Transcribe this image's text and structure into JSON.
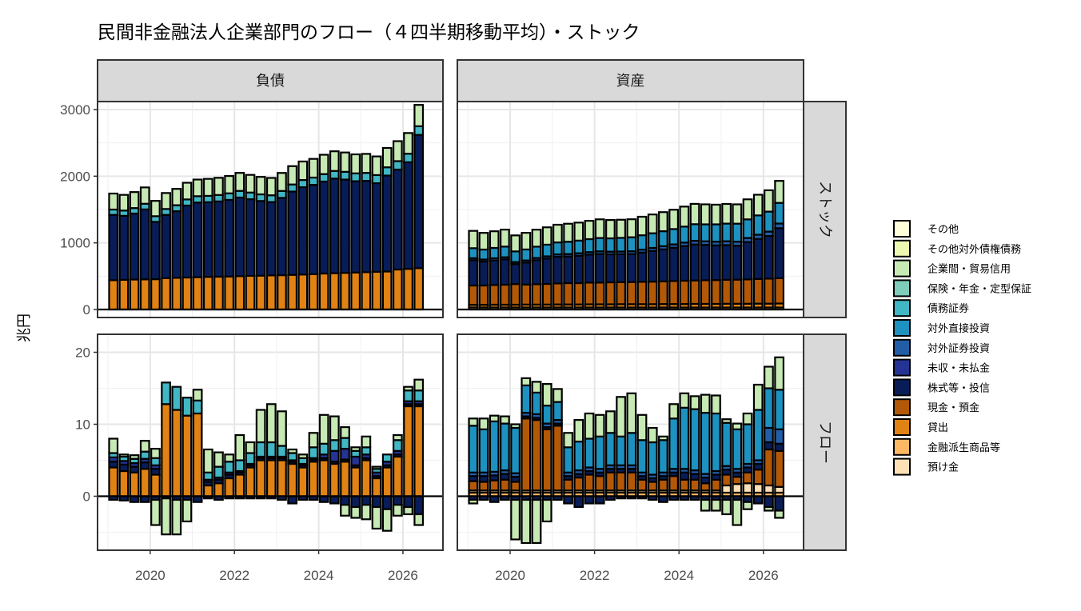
{
  "title": "民間非金融法人企業部門のフロー（４四半期移動平均）・ストック",
  "chart_data": {
    "type": "bar",
    "stacked": true,
    "facets": {
      "columns": [
        "負債",
        "資産"
      ],
      "rows": [
        "ストック",
        "フロー"
      ]
    },
    "ylabel": "兆円",
    "x_ticks": [
      "2020",
      "2022",
      "2024",
      "2026"
    ],
    "y_ticks": {
      "ストック": [
        "0",
        "1000",
        "2000",
        "3000"
      ],
      "フロー": [
        "0",
        "10",
        "20"
      ]
    },
    "ylim": {
      "ストック": [
        -120,
        3120
      ],
      "フロー": [
        -7.5,
        22.5
      ]
    },
    "x_range": [
      2018.75,
      2026.95
    ],
    "legend": {
      "position": "right",
      "items": [
        {
          "name": "その他",
          "color": "#ffffd9"
        },
        {
          "name": "その他対外債権債務",
          "color": "#edf8b1"
        },
        {
          "name": "企業間・貿易信用",
          "color": "#c7e9b4"
        },
        {
          "name": "保険・年金・定型保証",
          "color": "#7fcdbb"
        },
        {
          "name": "債務証券",
          "color": "#41b6c4"
        },
        {
          "name": "対外直接投資",
          "color": "#1d91c0"
        },
        {
          "name": "対外証券投資",
          "color": "#225ea8"
        },
        {
          "name": "未収・未払金",
          "color": "#253494"
        },
        {
          "name": "株式等・投信",
          "color": "#081d58"
        },
        {
          "name": "現金・預金",
          "color": "#b35806"
        },
        {
          "name": "貸出",
          "color": "#e08214"
        },
        {
          "name": "金融派生商品等",
          "color": "#fdb863"
        },
        {
          "name": "預け金",
          "color": "#fee0b6"
        }
      ]
    },
    "dates": [
      2019.125,
      2019.375,
      2019.625,
      2019.875,
      2020.125,
      2020.375,
      2020.625,
      2020.875,
      2021.125,
      2021.375,
      2021.625,
      2021.875,
      2022.125,
      2022.375,
      2022.625,
      2022.875,
      2023.125,
      2023.375,
      2023.625,
      2023.875,
      2024.125,
      2024.375,
      2024.625,
      2024.875,
      2025.125,
      2025.375,
      2025.625,
      2025.875,
      2026.125,
      2026.375
    ],
    "panels": {
      "負債_ストック": {
        "貸出": [
          440,
          445,
          450,
          452,
          455,
          470,
          475,
          480,
          485,
          490,
          492,
          495,
          500,
          505,
          508,
          512,
          515,
          520,
          525,
          530,
          540,
          545,
          550,
          555,
          560,
          565,
          570,
          600,
          610,
          620
        ],
        "株式等・投信": [
          980,
          960,
          990,
          1050,
          860,
          950,
          1000,
          1080,
          1120,
          1120,
          1130,
          1150,
          1180,
          1150,
          1120,
          1100,
          1160,
          1250,
          1310,
          1340,
          1380,
          1420,
          1400,
          1370,
          1370,
          1330,
          1440,
          1500,
          1600,
          2000
        ],
        "債務証券": [
          80,
          80,
          82,
          85,
          85,
          88,
          90,
          92,
          95,
          95,
          96,
          98,
          100,
          100,
          100,
          102,
          104,
          106,
          108,
          110,
          112,
          114,
          116,
          118,
          120,
          122,
          124,
          126,
          128,
          130
        ],
        "企業間・貿易信用": [
          240,
          235,
          240,
          245,
          230,
          240,
          245,
          250,
          250,
          255,
          258,
          260,
          270,
          265,
          262,
          260,
          270,
          275,
          278,
          280,
          290,
          295,
          290,
          285,
          285,
          280,
          290,
          300,
          310,
          320
        ]
      },
      "資産_ストック": {
        "金融派生商品等": [
          30,
          30,
          30,
          30,
          30,
          30,
          30,
          30,
          30,
          30,
          30,
          30,
          30,
          30,
          30,
          30,
          30,
          30,
          30,
          30,
          30,
          30,
          30,
          30,
          30,
          30,
          30,
          30,
          30,
          30
        ],
        "貸出": [
          40,
          40,
          42,
          42,
          42,
          44,
          44,
          44,
          46,
          46,
          46,
          48,
          48,
          48,
          50,
          50,
          50,
          50,
          52,
          52,
          52,
          54,
          54,
          54,
          56,
          56,
          56,
          58,
          58,
          60
        ],
        "現金・預金": [
          290,
          290,
          295,
          300,
          310,
          300,
          305,
          310,
          315,
          320,
          320,
          325,
          325,
          330,
          330,
          332,
          335,
          338,
          340,
          345,
          350,
          352,
          355,
          358,
          360,
          362,
          365,
          370,
          375,
          380
        ],
        "株式等・投信": [
          380,
          360,
          370,
          380,
          300,
          330,
          360,
          380,
          400,
          400,
          410,
          420,
          430,
          420,
          420,
          420,
          440,
          460,
          480,
          500,
          520,
          540,
          530,
          520,
          520,
          510,
          560,
          600,
          640,
          750
        ],
        "対外証券投資": [
          30,
          30,
          32,
          32,
          30,
          32,
          34,
          34,
          36,
          36,
          38,
          38,
          40,
          40,
          40,
          42,
          44,
          46,
          48,
          50,
          52,
          54,
          54,
          56,
          58,
          60,
          62,
          64,
          66,
          70
        ],
        "対外直接投資": [
          150,
          150,
          155,
          160,
          160,
          165,
          170,
          175,
          180,
          185,
          190,
          195,
          200,
          200,
          205,
          210,
          215,
          220,
          225,
          230,
          240,
          250,
          255,
          260,
          265,
          270,
          280,
          290,
          300,
          310
        ],
        "企業間・貿易信用": [
          260,
          250,
          250,
          255,
          240,
          250,
          255,
          260,
          265,
          270,
          270,
          275,
          280,
          275,
          272,
          270,
          278,
          282,
          286,
          290,
          300,
          305,
          300,
          295,
          295,
          290,
          300,
          310,
          320,
          330
        ]
      },
      "負債_フロー": {
        "貸出": [
          4.0,
          3.5,
          3.3,
          3.8,
          3.0,
          12.8,
          12.0,
          11.2,
          11.5,
          1.5,
          1.8,
          2.5,
          3.0,
          4.0,
          5.0,
          5.0,
          5.0,
          4.5,
          4.0,
          4.8,
          5.0,
          4.5,
          4.8,
          4.0,
          5.0,
          2.5,
          4.0,
          5.5,
          12.5,
          12.5
        ],
        "株式等・投信": [
          0.8,
          0.9,
          0.8,
          0.9,
          0.8,
          0.0,
          0.0,
          0.0,
          0.0,
          0.5,
          0.5,
          0.5,
          0.3,
          0.3,
          0.3,
          0.3,
          0.3,
          0.3,
          0.3,
          0.3,
          0.3,
          0.3,
          0.3,
          0.3,
          0.3,
          0.3,
          0.3,
          0.3,
          0.3,
          0.3
        ],
        "未収・未払金": [
          0.6,
          0.5,
          0.5,
          0.5,
          0.5,
          0.0,
          0.0,
          0.0,
          0.0,
          0.3,
          0.3,
          0.3,
          0.2,
          0.2,
          0.2,
          0.2,
          0.2,
          0.2,
          0.2,
          0.2,
          0.5,
          1.5,
          1.5,
          1.2,
          0.5,
          0.5,
          0.5,
          0.5,
          0.4,
          0.4
        ],
        "債務証券": [
          0.6,
          0.6,
          0.6,
          1.0,
          1.0,
          3.0,
          3.2,
          2.5,
          1.8,
          1.0,
          1.5,
          1.5,
          1.5,
          1.5,
          2.0,
          2.0,
          1.5,
          1.0,
          0.8,
          1.5,
          1.5,
          1.5,
          1.5,
          0.8,
          1.0,
          0.5,
          1.0,
          1.5,
          1.5,
          1.5
        ],
        "企業間・貿易信用": [
          2.0,
          0.3,
          0.5,
          1.5,
          1.3,
          0.0,
          0.0,
          0.0,
          1.5,
          3.2,
          2.0,
          1.0,
          3.5,
          1.5,
          4.5,
          5.3,
          4.8,
          0.5,
          0.5,
          2.0,
          4.0,
          3.3,
          1.5,
          0.5,
          1.5,
          0.3,
          0.0,
          0.7,
          0.5,
          1.5
        ],
        "株式等・投信_neg": [
          -0.5,
          -0.6,
          -0.8,
          -0.8,
          -0.5,
          -0.3,
          -0.5,
          -0.5,
          -0.8,
          -0.3,
          -0.5,
          -0.3,
          -0.3,
          -0.3,
          -0.3,
          -0.3,
          -0.5,
          -1.0,
          -0.5,
          -0.5,
          -0.8,
          -1.0,
          -1.2,
          -1.5,
          -1.2,
          -1.5,
          -1.8,
          -1.2,
          -1.5,
          -2.5
        ],
        "企業間・貿易信用_neg": [
          0,
          0,
          0,
          0,
          -3.5,
          -5.0,
          -4.8,
          -3.0,
          0,
          0,
          0,
          0,
          0,
          0,
          0,
          0,
          0,
          0,
          0,
          0,
          0,
          0,
          -1.5,
          -1.5,
          -2.0,
          -3.0,
          -3.0,
          -1.5,
          -1.0,
          -1.5
        ]
      },
      "資産_フロー": {
        "金融派生商品等": [
          0.5,
          0.5,
          0.5,
          0.5,
          0.5,
          0.5,
          0.5,
          0.5,
          0.5,
          0.5,
          0.5,
          0.5,
          0.5,
          0.5,
          0.5,
          0.5,
          0.5,
          0.5,
          0.5,
          0.5,
          0.5,
          0.5,
          0.5,
          0.5,
          0.5,
          0.5,
          0.5,
          0.5,
          0.5,
          0.5
        ],
        "預け金": [
          0.3,
          0.3,
          0.3,
          0.3,
          0.3,
          0.3,
          0.3,
          0.3,
          0.3,
          0.3,
          0.3,
          0.3,
          0.3,
          0.3,
          0.3,
          0.3,
          0.3,
          0.3,
          0.3,
          0.3,
          0.3,
          0.3,
          0.3,
          0.3,
          1.0,
          1.2,
          1.3,
          1.2,
          1.0,
          0.8
        ],
        "現金・預金": [
          1.3,
          1.2,
          1.4,
          1.5,
          1.2,
          10.0,
          9.8,
          8.5,
          9.0,
          1.5,
          1.8,
          2.2,
          2.0,
          2.5,
          2.5,
          2.5,
          1.5,
          1.2,
          1.5,
          2.0,
          1.5,
          1.5,
          1.0,
          1.5,
          1.5,
          1.0,
          1.5,
          2.0,
          5.0,
          5.0
        ],
        "株式等・投信": [
          0.7,
          0.8,
          0.7,
          0.8,
          0.7,
          0.3,
          0.3,
          0.3,
          0.3,
          0.5,
          0.5,
          0.5,
          0.5,
          0.5,
          0.5,
          0.5,
          0.5,
          0.5,
          0.5,
          0.5,
          1.0,
          0.8,
          0.8,
          0.7,
          0.7,
          0.6,
          0.7,
          0.8,
          1.0,
          1.0
        ],
        "対外証券投資": [
          0.5,
          0.5,
          0.5,
          0.5,
          0.5,
          0.5,
          0.5,
          0.5,
          0.5,
          0.5,
          0.5,
          0.5,
          0.5,
          0.5,
          0.5,
          0.5,
          0.5,
          0.5,
          0.5,
          0.5,
          0.5,
          0.5,
          0.5,
          0.5,
          0.5,
          0.5,
          0.5,
          0.5,
          2.0,
          2.0
        ],
        "対外直接投資": [
          6.5,
          6.0,
          7.0,
          6.5,
          6.3,
          3.8,
          3.0,
          2.5,
          2.5,
          3.5,
          4.0,
          4.0,
          4.5,
          4.5,
          4.0,
          4.5,
          4.5,
          4.5,
          4.5,
          7.0,
          8.5,
          8.5,
          8.5,
          8.0,
          6.0,
          5.5,
          5.5,
          7.0,
          5.5,
          5.5
        ],
        "企業間・貿易信用": [
          1.0,
          1.5,
          0.8,
          1.0,
          0.5,
          1.0,
          1.5,
          3.0,
          1.8,
          2.0,
          3.0,
          3.5,
          3.0,
          3.0,
          5.5,
          5.5,
          3.5,
          2.0,
          0.5,
          2.0,
          2.0,
          1.8,
          2.5,
          2.5,
          0.5,
          0.8,
          1.5,
          3.5,
          3.0,
          4.5
        ],
        "企業間・貿易信用_neg": [
          -0.5,
          0,
          0,
          0,
          -5.5,
          -6.0,
          -6.0,
          -3.0,
          0,
          0,
          0,
          0,
          0,
          0,
          0,
          0,
          0,
          0,
          0,
          0,
          0,
          0,
          -1.5,
          -1.5,
          -2.0,
          -3.5,
          -1.0,
          0,
          -0.5,
          -1.0
        ],
        "株式等・投信_neg": [
          -0.5,
          -0.5,
          -0.8,
          -0.5,
          -0.5,
          -0.5,
          -0.5,
          -0.5,
          -0.5,
          -1.0,
          -1.5,
          -1.0,
          -1.0,
          -0.5,
          -0.3,
          -0.3,
          -0.3,
          -0.5,
          -0.8,
          -0.5,
          -0.5,
          -0.5,
          -0.5,
          -0.5,
          -0.5,
          -0.5,
          -0.8,
          -1.0,
          -1.5,
          -2.0
        ]
      }
    }
  }
}
